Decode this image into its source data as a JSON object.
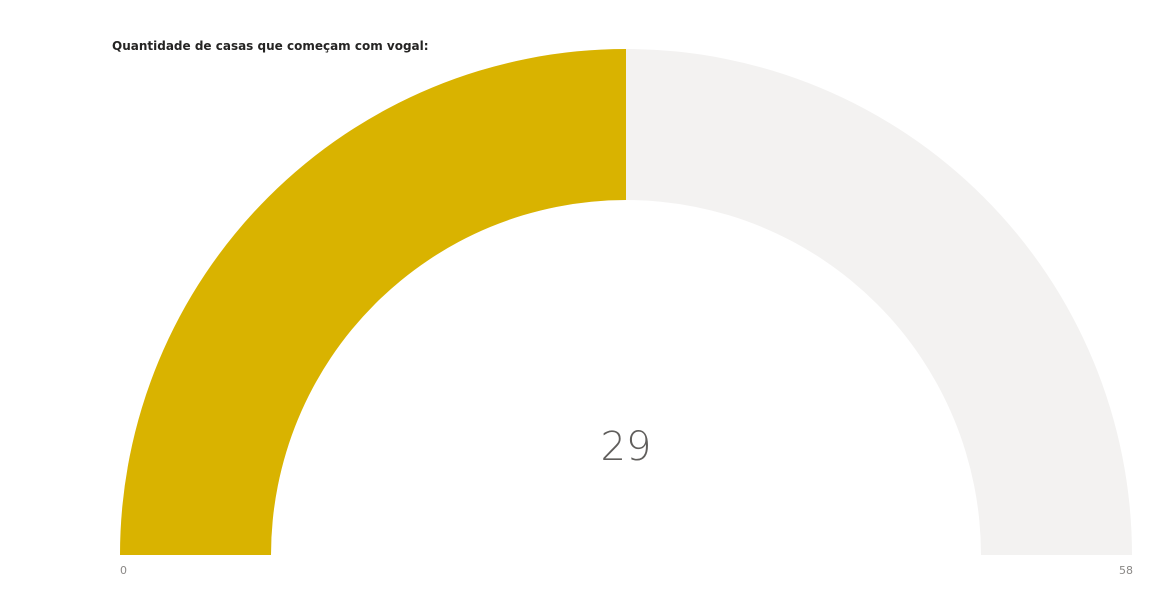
{
  "chart_data": {
    "type": "gauge",
    "title": "Quantidade de casas que começam com vogal:",
    "value": 29,
    "min": 0,
    "max": 58,
    "value_label": "29",
    "min_label": "0",
    "max_label": "58",
    "colors": {
      "fill": "#D9B300",
      "track": "#F3F2F1",
      "value_text": "#605E5C",
      "tick_text": "#8A8886"
    }
  }
}
